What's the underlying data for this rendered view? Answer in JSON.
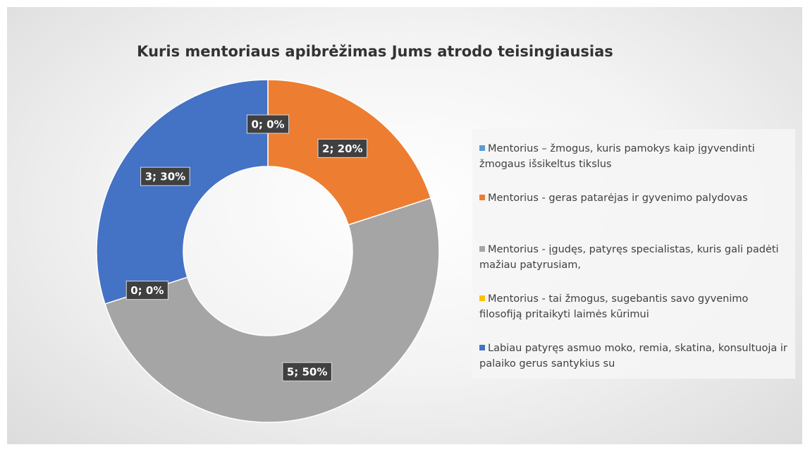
{
  "chart_data": {
    "type": "donut",
    "title": "Kuris mentoriaus apibrėžimas Jums atrodo teisingiausias",
    "categories": [
      "Mentorius – žmogus, kuris pamokys kaip įgyvendinti žmogaus išsikeltus tikslus",
      "Mentorius  - geras patarėjas ir gyvenimo palydovas",
      "Mentorius - įgudęs, patyręs specialistas, kuris gali padėti mažiau patyrusiam,",
      "Mentorius - tai žmogus, sugebantis savo  gyvenimo filosofiją pritaikyti laimės kūrimui",
      "Labiau patyręs asmuo moko, remia, skatina, konsultuoja ir palaiko gerus santykius su"
    ],
    "values": [
      0,
      2,
      5,
      0,
      3
    ],
    "value_labels": [
      "0; 0%",
      "2; 20%",
      "5; 50%",
      "0; 0%",
      "3; 30%"
    ],
    "colors": [
      "#5b9bd5",
      "#ed7d31",
      "#a5a5a5",
      "#ffc000",
      "#4472c4"
    ],
    "legend": "right"
  }
}
